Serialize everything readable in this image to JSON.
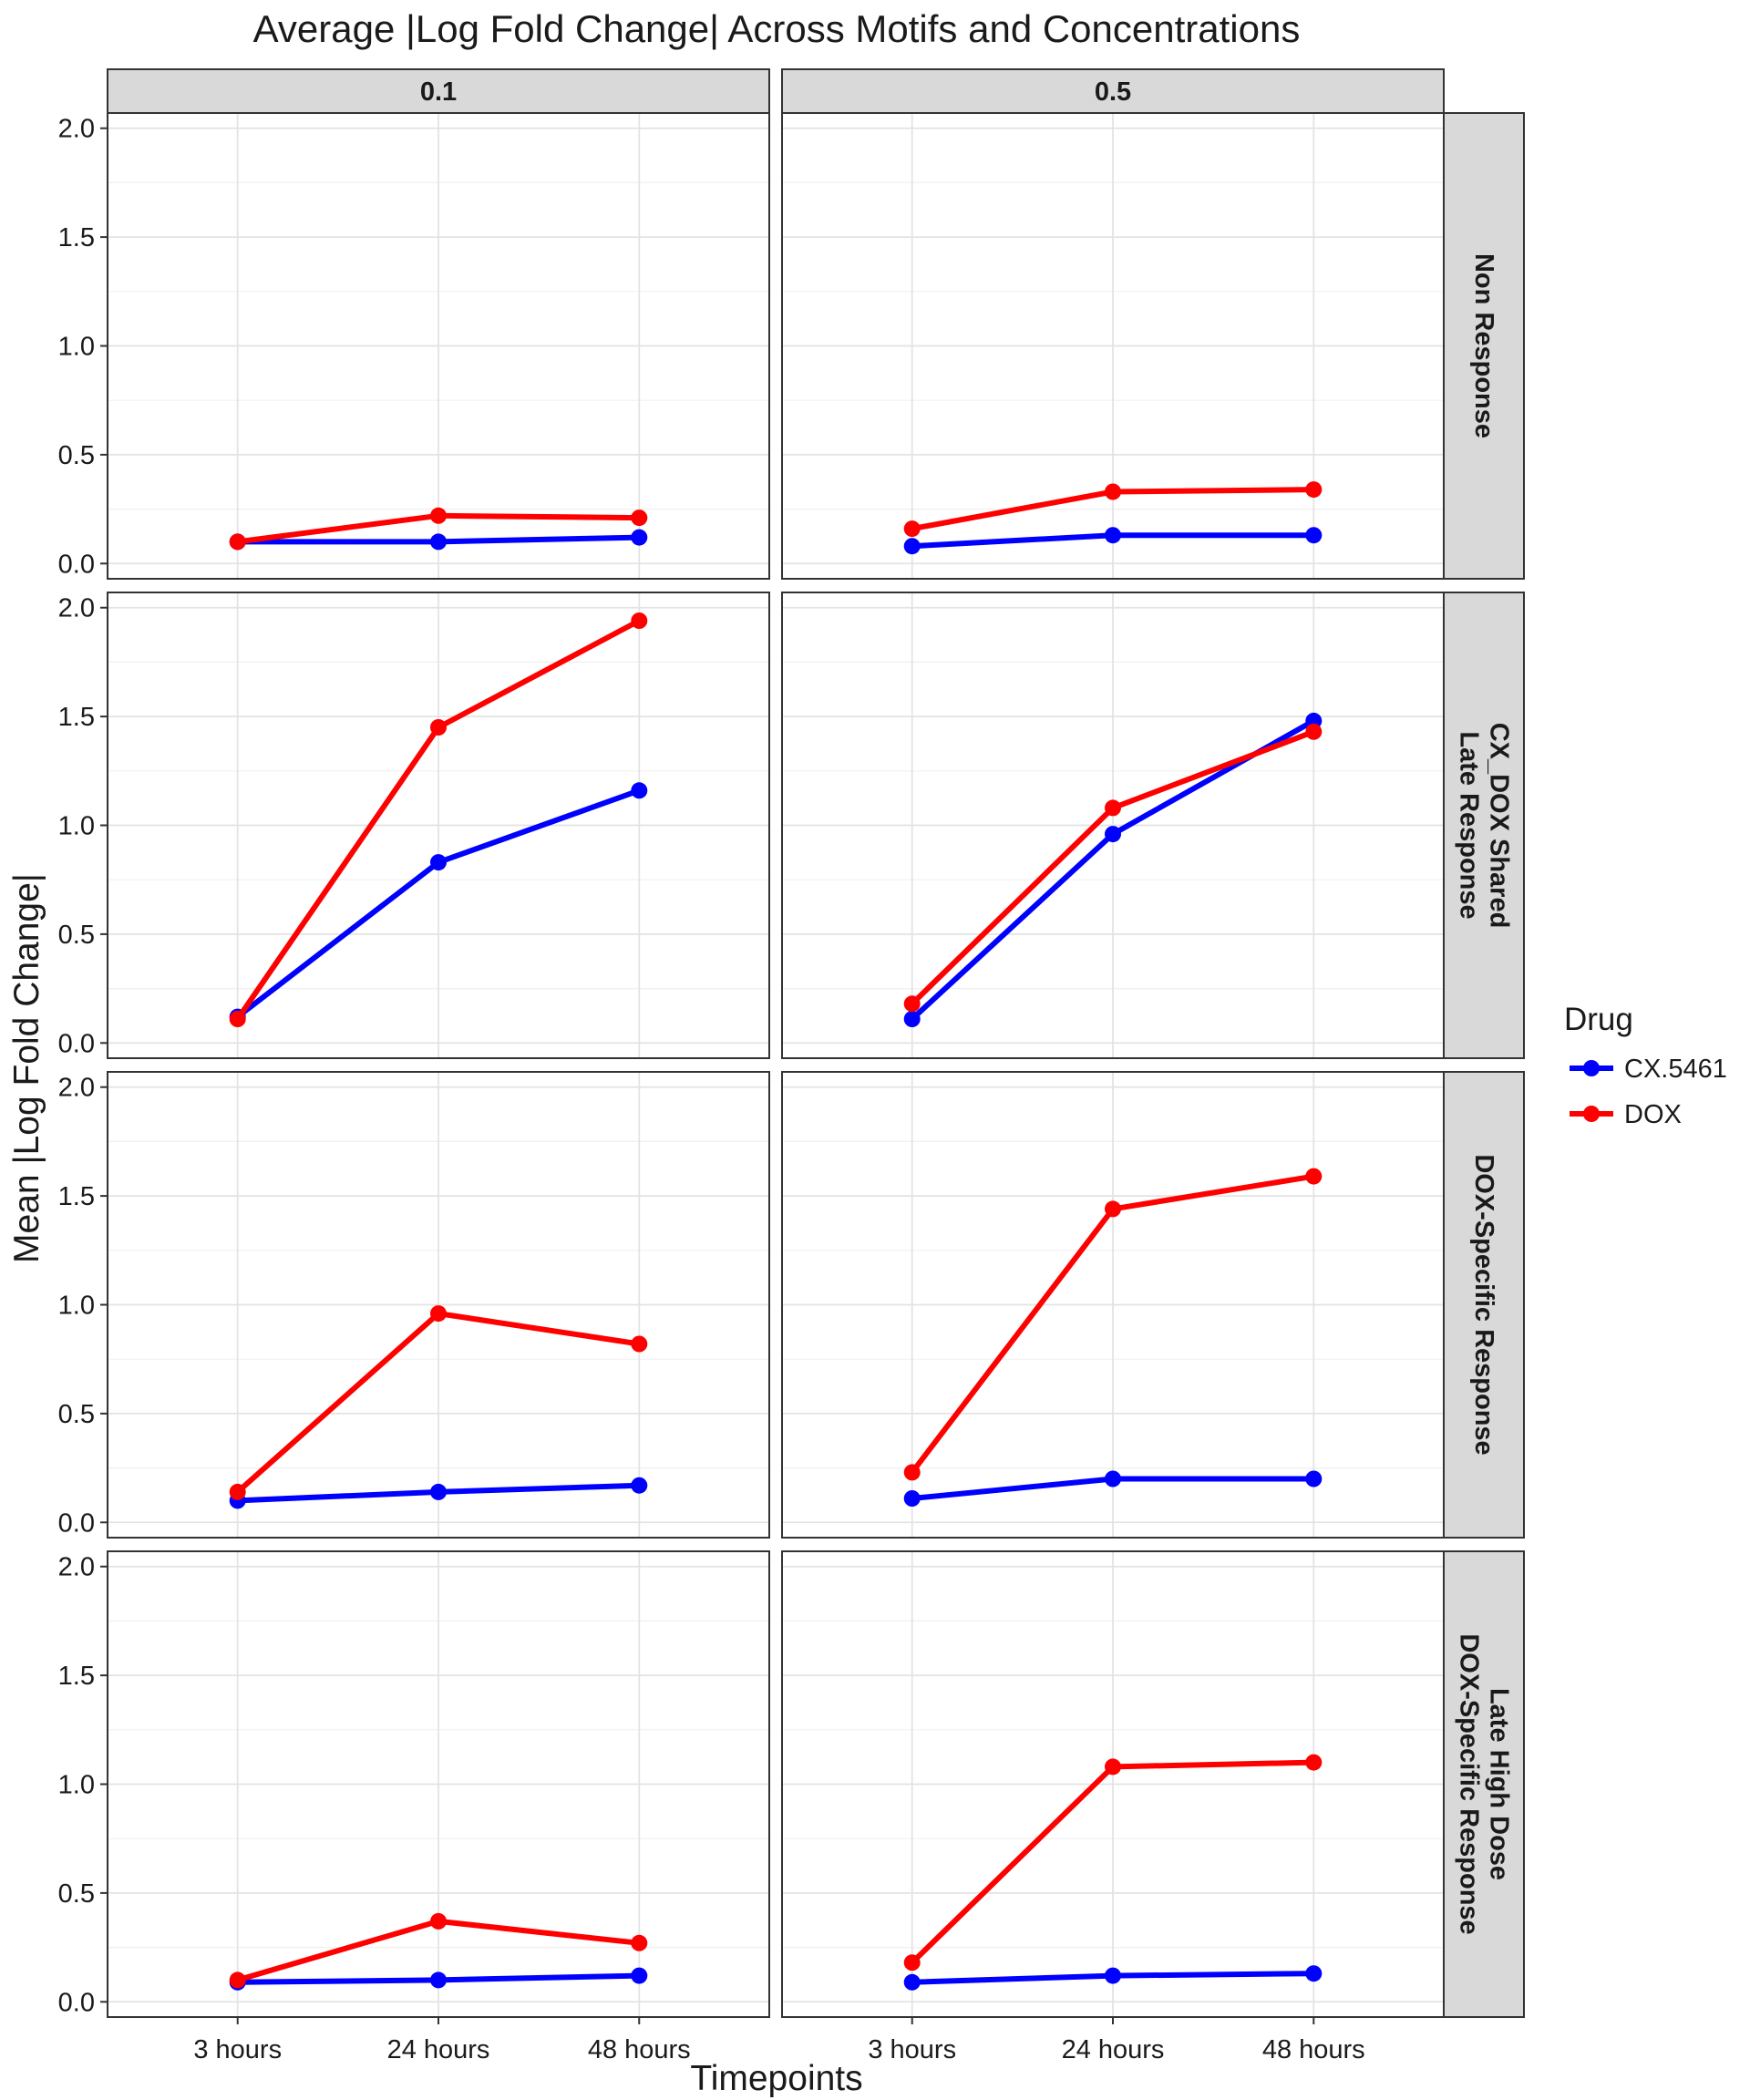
{
  "chart_data": {
    "type": "line",
    "title": "Average |Log Fold Change| Across Motifs and Concentrations",
    "xlabel": "Timepoints",
    "ylabel": "Mean |Log Fold Change|",
    "x": [
      "3 hours",
      "24 hours",
      "48 hours"
    ],
    "ylim": [
      -0.07,
      2.07
    ],
    "yticks": [
      "0.0",
      "0.5",
      "1.0",
      "1.5",
      "2.0"
    ],
    "grid": true,
    "legend": {
      "title": "Drug",
      "position": "right",
      "entries": [
        {
          "name": "CX.5461",
          "color": "#0000ff"
        },
        {
          "name": "DOX",
          "color": "#ff0000"
        }
      ]
    },
    "columns": [
      "0.1",
      "0.5"
    ],
    "rows": [
      {
        "lines": [
          "Non Response"
        ]
      },
      {
        "lines": [
          "CX_DOX Shared",
          "Late Response"
        ]
      },
      {
        "lines": [
          "DOX-Specific Response"
        ]
      },
      {
        "lines": [
          "Late High Dose",
          "DOX-Specific Response"
        ]
      }
    ],
    "panels": [
      {
        "row": 0,
        "col": 0,
        "series": [
          {
            "name": "CX.5461",
            "values": [
              0.1,
              0.1,
              0.12
            ]
          },
          {
            "name": "DOX",
            "values": [
              0.1,
              0.22,
              0.21
            ]
          }
        ]
      },
      {
        "row": 0,
        "col": 1,
        "series": [
          {
            "name": "CX.5461",
            "values": [
              0.08,
              0.13,
              0.13
            ]
          },
          {
            "name": "DOX",
            "values": [
              0.16,
              0.33,
              0.34
            ]
          }
        ]
      },
      {
        "row": 1,
        "col": 0,
        "series": [
          {
            "name": "CX.5461",
            "values": [
              0.12,
              0.83,
              1.16
            ]
          },
          {
            "name": "DOX",
            "values": [
              0.11,
              1.45,
              1.94
            ]
          }
        ]
      },
      {
        "row": 1,
        "col": 1,
        "series": [
          {
            "name": "CX.5461",
            "values": [
              0.11,
              0.96,
              1.48
            ]
          },
          {
            "name": "DOX",
            "values": [
              0.18,
              1.08,
              1.43
            ]
          }
        ]
      },
      {
        "row": 2,
        "col": 0,
        "series": [
          {
            "name": "CX.5461",
            "values": [
              0.1,
              0.14,
              0.17
            ]
          },
          {
            "name": "DOX",
            "values": [
              0.14,
              0.96,
              0.82
            ]
          }
        ]
      },
      {
        "row": 2,
        "col": 1,
        "series": [
          {
            "name": "CX.5461",
            "values": [
              0.11,
              0.2,
              0.2
            ]
          },
          {
            "name": "DOX",
            "values": [
              0.23,
              1.44,
              1.59
            ]
          }
        ]
      },
      {
        "row": 3,
        "col": 0,
        "series": [
          {
            "name": "CX.5461",
            "values": [
              0.09,
              0.1,
              0.12
            ]
          },
          {
            "name": "DOX",
            "values": [
              0.1,
              0.37,
              0.27
            ]
          }
        ]
      },
      {
        "row": 3,
        "col": 1,
        "series": [
          {
            "name": "CX.5461",
            "values": [
              0.09,
              0.12,
              0.13
            ]
          },
          {
            "name": "DOX",
            "values": [
              0.18,
              1.08,
              1.1
            ]
          }
        ]
      }
    ]
  }
}
